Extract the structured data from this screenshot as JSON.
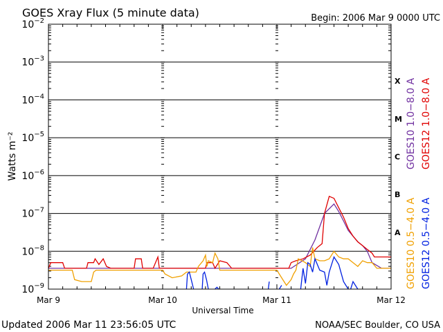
{
  "header": {
    "title": "GOES Xray Flux (5 minute data)",
    "begin": "Begin:  2006 Mar 9 0000 UTC"
  },
  "footer": {
    "updated": "Updated 2006 Mar 11 23:56:05 UTC",
    "credit": "NOAA/SEC Boulder, CO USA"
  },
  "chart_data": {
    "type": "line",
    "title": "GOES Xray Flux (5 minute data)",
    "xlabel": "Universal Time",
    "ylabel": "Watts m⁻²",
    "x_unit": "hours since 2006 Mar 9 0000 UTC",
    "xlim": [
      0,
      72
    ],
    "ylim_log10": [
      -9,
      -2
    ],
    "y_scale": "log",
    "x_ticks": [
      {
        "x": 0,
        "label": "Mar 9"
      },
      {
        "x": 24,
        "label": "Mar 10"
      },
      {
        "x": 48,
        "label": "Mar 11"
      },
      {
        "x": 72,
        "label": "Mar 12"
      }
    ],
    "y_ticks": [
      {
        "exp": -9,
        "label": "10",
        "sup": "−9"
      },
      {
        "exp": -8,
        "label": "10",
        "sup": "−8"
      },
      {
        "exp": -7,
        "label": "10",
        "sup": "−7"
      },
      {
        "exp": -6,
        "label": "10",
        "sup": "−6"
      },
      {
        "exp": -5,
        "label": "10",
        "sup": "−5"
      },
      {
        "exp": -4,
        "label": "10",
        "sup": "−4"
      },
      {
        "exp": -3,
        "label": "10",
        "sup": "−3"
      },
      {
        "exp": -2,
        "label": "10",
        "sup": "−2"
      }
    ],
    "flare_classes": [
      {
        "label": "X",
        "exp": -3.5
      },
      {
        "label": "M",
        "exp": -4.5
      },
      {
        "label": "C",
        "exp": -5.5
      },
      {
        "label": "B",
        "exp": -6.5
      },
      {
        "label": "A",
        "exp": -7.5
      }
    ],
    "grid_h": true,
    "legend_placement": "right",
    "series": [
      {
        "name": "GOES10 1.0−8.0 A",
        "color": "#7030a0",
        "points": [
          [
            0,
            -8.45
          ],
          [
            3,
            -8.45
          ],
          [
            6,
            -8.45
          ],
          [
            9,
            -8.45
          ],
          [
            12,
            -8.45
          ],
          [
            15,
            -8.45
          ],
          [
            18,
            -8.45
          ],
          [
            21,
            -8.45
          ],
          [
            24,
            -8.45
          ],
          [
            27,
            -8.45
          ],
          [
            30,
            -8.45
          ],
          [
            33,
            -8.45
          ],
          [
            36,
            -8.45
          ],
          [
            39,
            -8.45
          ],
          [
            42,
            -8.45
          ],
          [
            45,
            -8.45
          ],
          [
            48,
            -8.45
          ],
          [
            51,
            -8.45
          ],
          [
            54,
            -8.2
          ],
          [
            56,
            -7.7
          ],
          [
            58,
            -7.0
          ],
          [
            60,
            -6.75
          ],
          [
            61,
            -6.95
          ],
          [
            62,
            -7.2
          ],
          [
            63,
            -7.45
          ],
          [
            64,
            -7.6
          ],
          [
            65,
            -7.75
          ],
          [
            66,
            -7.85
          ],
          [
            67,
            -8.0
          ],
          [
            68,
            -8.3
          ],
          [
            70,
            -8.45
          ],
          [
            72,
            -8.45
          ]
        ]
      },
      {
        "name": "GOES12 1.0−8.0 A",
        "color": "#e00000",
        "points": [
          [
            0,
            -8.45
          ],
          [
            0.5,
            -8.3
          ],
          [
            3,
            -8.3
          ],
          [
            3.4,
            -8.45
          ],
          [
            8,
            -8.45
          ],
          [
            8.3,
            -8.3
          ],
          [
            9.5,
            -8.3
          ],
          [
            9.8,
            -8.2
          ],
          [
            10.6,
            -8.35
          ],
          [
            11.5,
            -8.2
          ],
          [
            12.2,
            -8.4
          ],
          [
            13.1,
            -8.45
          ],
          [
            18,
            -8.45
          ],
          [
            18.3,
            -8.2
          ],
          [
            19.5,
            -8.2
          ],
          [
            19.8,
            -8.45
          ],
          [
            20.8,
            -8.45
          ],
          [
            21,
            -8.45
          ],
          [
            22,
            -8.45
          ],
          [
            23,
            -8.15
          ],
          [
            23.3,
            -8.45
          ],
          [
            24,
            -8.45
          ],
          [
            33,
            -8.45
          ],
          [
            33.3,
            -8.3
          ],
          [
            34.5,
            -8.3
          ],
          [
            35,
            -8.45
          ],
          [
            36,
            -8.25
          ],
          [
            37.5,
            -8.3
          ],
          [
            38.5,
            -8.45
          ],
          [
            45,
            -8.45
          ],
          [
            48,
            -8.45
          ],
          [
            50.5,
            -8.45
          ],
          [
            51,
            -8.3
          ],
          [
            52,
            -8.25
          ],
          [
            53.5,
            -8.2
          ],
          [
            55,
            -8.1
          ],
          [
            56.5,
            -7.9
          ],
          [
            57.5,
            -7.8
          ],
          [
            58,
            -7.0
          ],
          [
            59,
            -6.55
          ],
          [
            60,
            -6.6
          ],
          [
            61,
            -6.85
          ],
          [
            62,
            -7.1
          ],
          [
            63,
            -7.4
          ],
          [
            64,
            -7.6
          ],
          [
            65,
            -7.75
          ],
          [
            66,
            -7.85
          ],
          [
            67,
            -7.95
          ],
          [
            68,
            -8.05
          ],
          [
            68.5,
            -8.15
          ],
          [
            70,
            -8.15
          ],
          [
            72,
            -8.15
          ]
        ]
      },
      {
        "name": "GOES10 0.5−4.0 A",
        "color": "#f0a000",
        "points": [
          [
            0,
            -8.5
          ],
          [
            5,
            -8.5
          ],
          [
            5.5,
            -8.75
          ],
          [
            7,
            -8.8
          ],
          [
            9,
            -8.8
          ],
          [
            9.5,
            -8.55
          ],
          [
            10,
            -8.5
          ],
          [
            24,
            -8.5
          ],
          [
            24.5,
            -8.6
          ],
          [
            26,
            -8.7
          ],
          [
            28,
            -8.65
          ],
          [
            29,
            -8.55
          ],
          [
            31,
            -8.55
          ],
          [
            31.5,
            -8.4
          ],
          [
            32.5,
            -8.25
          ],
          [
            33,
            -8.1
          ],
          [
            33.3,
            -8.4
          ],
          [
            33.6,
            -8.25
          ],
          [
            34.5,
            -8.3
          ],
          [
            35,
            -8.05
          ],
          [
            35.6,
            -8.2
          ],
          [
            36,
            -8.5
          ],
          [
            48,
            -8.5
          ],
          [
            49,
            -8.7
          ],
          [
            50,
            -8.9
          ],
          [
            51,
            -8.75
          ],
          [
            51.5,
            -8.6
          ],
          [
            52,
            -8.5
          ],
          [
            52.5,
            -8.2
          ],
          [
            54,
            -8.3
          ],
          [
            55,
            -8.4
          ],
          [
            55.5,
            -7.9
          ],
          [
            56,
            -8.2
          ],
          [
            57,
            -8.25
          ],
          [
            58,
            -8.25
          ],
          [
            59,
            -8.2
          ],
          [
            60,
            -8.0
          ],
          [
            61,
            -8.15
          ],
          [
            62,
            -8.2
          ],
          [
            63,
            -8.2
          ],
          [
            64,
            -8.3
          ],
          [
            65,
            -8.4
          ],
          [
            66,
            -8.25
          ],
          [
            67,
            -8.3
          ],
          [
            68,
            -8.3
          ],
          [
            69,
            -8.45
          ],
          [
            72,
            -8.45
          ]
        ]
      },
      {
        "name": "GOES12 0.5−4.0 A",
        "color": "#0020e0",
        "segments": [
          [
            [
              29,
              -9.0
            ],
            [
              29.2,
              -8.6
            ],
            [
              29.6,
              -8.55
            ],
            [
              30,
              -8.75
            ],
            [
              30.5,
              -9.0
            ]
          ],
          [
            [
              32.3,
              -9.0
            ],
            [
              32.5,
              -8.6
            ],
            [
              32.8,
              -8.55
            ],
            [
              33.2,
              -8.75
            ],
            [
              33.6,
              -9.0
            ]
          ],
          [
            [
              35,
              -9.0
            ],
            [
              35.4,
              -8.95
            ],
            [
              35.8,
              -9.0
            ]
          ],
          [
            [
              46.2,
              -9.0
            ],
            [
              46.4,
              -8.8
            ]
          ],
          [
            [
              48.5,
              -9.0
            ],
            [
              49,
              -8.9
            ]
          ],
          [
            [
              53,
              -9.0
            ],
            [
              53.5,
              -8.45
            ],
            [
              54,
              -8.85
            ],
            [
              54.5,
              -8.3
            ],
            [
              55,
              -8.35
            ],
            [
              55.5,
              -8.55
            ],
            [
              56,
              -8.2
            ],
            [
              57,
              -8.5
            ],
            [
              58,
              -8.55
            ],
            [
              58.5,
              -8.9
            ],
            [
              59,
              -8.55
            ],
            [
              60,
              -8.15
            ],
            [
              61,
              -8.35
            ],
            [
              62,
              -8.8
            ],
            [
              63,
              -9.0
            ]
          ],
          [
            [
              63.5,
              -9.0
            ],
            [
              64,
              -8.8
            ],
            [
              65,
              -9.0
            ]
          ]
        ]
      }
    ]
  }
}
